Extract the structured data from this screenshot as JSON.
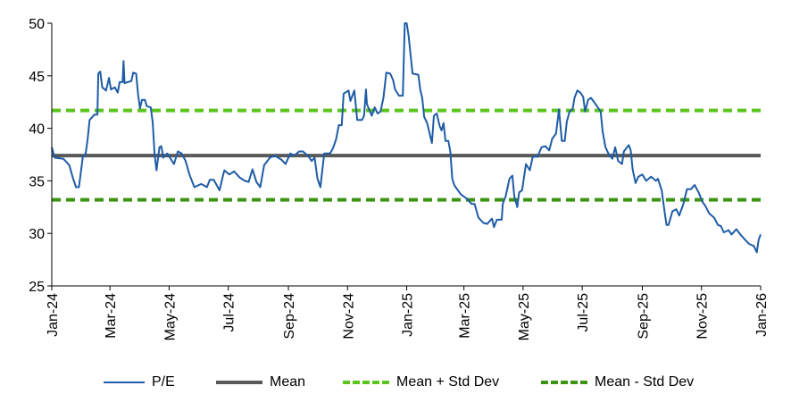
{
  "chart_data": {
    "type": "line",
    "title": "",
    "xlabel": "",
    "ylabel": "",
    "ylim": [
      25,
      50
    ],
    "yticks": [
      25,
      30,
      35,
      40,
      45,
      50
    ],
    "xlim": [
      "2024-01-01",
      "2026-01-01"
    ],
    "xticks": [
      {
        "date": "2024-01-01",
        "label": "Jan-24"
      },
      {
        "date": "2024-03-01",
        "label": "Mar-24"
      },
      {
        "date": "2024-05-01",
        "label": "May-24"
      },
      {
        "date": "2024-07-01",
        "label": "Jul-24"
      },
      {
        "date": "2024-09-01",
        "label": "Sep-24"
      },
      {
        "date": "2024-11-01",
        "label": "Nov-24"
      },
      {
        "date": "2025-01-01",
        "label": "Jan-25"
      },
      {
        "date": "2025-03-01",
        "label": "Mar-25"
      },
      {
        "date": "2025-05-01",
        "label": "May-25"
      },
      {
        "date": "2025-07-01",
        "label": "Jul-25"
      },
      {
        "date": "2025-09-01",
        "label": "Sep-25"
      },
      {
        "date": "2025-11-01",
        "label": "Nov-25"
      },
      {
        "date": "2026-01-01",
        "label": "Jan-26"
      }
    ],
    "grid": false,
    "legend_position": "bottom",
    "series": [
      {
        "name": "P/E",
        "color": "#1F5CA6",
        "style": "solid",
        "points": [
          [
            "2024-01-01",
            38.2
          ],
          [
            "2024-01-04",
            37.2
          ],
          [
            "2024-01-13",
            37.1
          ],
          [
            "2024-01-19",
            36.5
          ],
          [
            "2024-01-23",
            35.2
          ],
          [
            "2024-01-26",
            34.4
          ],
          [
            "2024-01-29",
            34.4
          ],
          [
            "2024-02-02",
            37.3
          ],
          [
            "2024-02-05",
            37.6
          ],
          [
            "2024-02-07",
            39.0
          ],
          [
            "2024-02-09",
            40.8
          ],
          [
            "2024-02-14",
            41.3
          ],
          [
            "2024-02-17",
            41.3
          ],
          [
            "2024-02-18",
            45.2
          ],
          [
            "2024-02-20",
            45.4
          ],
          [
            "2024-02-22",
            43.9
          ],
          [
            "2024-02-26",
            43.6
          ],
          [
            "2024-02-29",
            44.8
          ],
          [
            "2024-03-02",
            43.7
          ],
          [
            "2024-03-06",
            43.9
          ],
          [
            "2024-03-09",
            43.4
          ],
          [
            "2024-03-11",
            44.4
          ],
          [
            "2024-03-14",
            44.4
          ],
          [
            "2024-03-15",
            46.4
          ],
          [
            "2024-03-16",
            44.3
          ],
          [
            "2024-03-23",
            44.5
          ],
          [
            "2024-03-25",
            45.3
          ],
          [
            "2024-03-28",
            45.2
          ],
          [
            "2024-03-30",
            43.2
          ],
          [
            "2024-04-01",
            41.9
          ],
          [
            "2024-04-03",
            42.7
          ],
          [
            "2024-04-06",
            42.7
          ],
          [
            "2024-04-08",
            42.1
          ],
          [
            "2024-04-12",
            42.0
          ],
          [
            "2024-04-14",
            40.6
          ],
          [
            "2024-04-16",
            37.6
          ],
          [
            "2024-04-18",
            36.0
          ],
          [
            "2024-04-21",
            38.2
          ],
          [
            "2024-04-23",
            38.3
          ],
          [
            "2024-04-25",
            37.2
          ],
          [
            "2024-04-29",
            37.6
          ],
          [
            "2024-05-06",
            36.6
          ],
          [
            "2024-05-10",
            37.8
          ],
          [
            "2024-05-14",
            37.6
          ],
          [
            "2024-05-18",
            36.9
          ],
          [
            "2024-05-22",
            35.6
          ],
          [
            "2024-05-27",
            34.4
          ],
          [
            "2024-06-03",
            34.7
          ],
          [
            "2024-06-09",
            34.4
          ],
          [
            "2024-06-12",
            35.1
          ],
          [
            "2024-06-16",
            35.1
          ],
          [
            "2024-06-22",
            34.1
          ],
          [
            "2024-06-25",
            35.3
          ],
          [
            "2024-06-27",
            36.0
          ],
          [
            "2024-07-02",
            35.6
          ],
          [
            "2024-07-07",
            35.9
          ],
          [
            "2024-07-13",
            35.3
          ],
          [
            "2024-07-18",
            35.0
          ],
          [
            "2024-07-22",
            34.9
          ],
          [
            "2024-07-26",
            36.1
          ],
          [
            "2024-07-30",
            34.9
          ],
          [
            "2024-08-03",
            34.4
          ],
          [
            "2024-08-07",
            36.5
          ],
          [
            "2024-08-13",
            37.2
          ],
          [
            "2024-08-18",
            37.4
          ],
          [
            "2024-08-25",
            37.0
          ],
          [
            "2024-08-29",
            36.6
          ],
          [
            "2024-09-03",
            37.6
          ],
          [
            "2024-09-07",
            37.4
          ],
          [
            "2024-09-12",
            37.8
          ],
          [
            "2024-09-16",
            37.8
          ],
          [
            "2024-09-21",
            37.4
          ],
          [
            "2024-09-25",
            36.9
          ],
          [
            "2024-09-28",
            37.2
          ],
          [
            "2024-10-01",
            35.2
          ],
          [
            "2024-10-04",
            34.4
          ],
          [
            "2024-10-06",
            36.0
          ],
          [
            "2024-10-08",
            37.6
          ],
          [
            "2024-10-14",
            37.6
          ],
          [
            "2024-10-17",
            38.1
          ],
          [
            "2024-10-20",
            38.9
          ],
          [
            "2024-10-23",
            40.3
          ],
          [
            "2024-10-26",
            40.3
          ],
          [
            "2024-10-28",
            43.3
          ],
          [
            "2024-11-02",
            43.6
          ],
          [
            "2024-11-04",
            42.6
          ],
          [
            "2024-11-08",
            43.6
          ],
          [
            "2024-11-11",
            40.8
          ],
          [
            "2024-11-16",
            40.8
          ],
          [
            "2024-11-18",
            41.2
          ],
          [
            "2024-11-20",
            43.7
          ],
          [
            "2024-11-21",
            42.3
          ],
          [
            "2024-11-26",
            41.2
          ],
          [
            "2024-11-29",
            42.0
          ],
          [
            "2024-12-02",
            41.4
          ],
          [
            "2024-12-05",
            41.6
          ],
          [
            "2024-12-08",
            42.9
          ],
          [
            "2024-12-11",
            45.3
          ],
          [
            "2024-12-15",
            45.2
          ],
          [
            "2024-12-18",
            44.6
          ],
          [
            "2024-12-20",
            43.7
          ],
          [
            "2024-12-24",
            43.1
          ],
          [
            "2024-12-28",
            43.1
          ],
          [
            "2024-12-30",
            50.0
          ],
          [
            "2025-01-01",
            50.0
          ],
          [
            "2025-01-03",
            48.8
          ],
          [
            "2025-01-05",
            47.0
          ],
          [
            "2025-01-07",
            45.2
          ],
          [
            "2025-01-13",
            45.1
          ],
          [
            "2025-01-15",
            43.7
          ],
          [
            "2025-01-17",
            42.9
          ],
          [
            "2025-01-19",
            41.1
          ],
          [
            "2025-01-22",
            40.5
          ],
          [
            "2025-01-27",
            38.6
          ],
          [
            "2025-01-29",
            41.2
          ],
          [
            "2025-02-01",
            41.4
          ],
          [
            "2025-02-04",
            40.2
          ],
          [
            "2025-02-06",
            39.8
          ],
          [
            "2025-02-08",
            40.5
          ],
          [
            "2025-02-10",
            38.8
          ],
          [
            "2025-02-13",
            38.8
          ],
          [
            "2025-02-15",
            37.8
          ],
          [
            "2025-02-17",
            35.2
          ],
          [
            "2025-02-19",
            34.6
          ],
          [
            "2025-02-22",
            34.2
          ],
          [
            "2025-02-26",
            33.7
          ],
          [
            "2025-03-04",
            33.3
          ],
          [
            "2025-03-09",
            32.8
          ],
          [
            "2025-03-12",
            32.8
          ],
          [
            "2025-03-16",
            31.5
          ],
          [
            "2025-03-21",
            31.0
          ],
          [
            "2025-03-25",
            30.9
          ],
          [
            "2025-03-30",
            31.4
          ],
          [
            "2025-04-01",
            30.6
          ],
          [
            "2025-04-04",
            31.3
          ],
          [
            "2025-04-09",
            31.3
          ],
          [
            "2025-04-10",
            32.8
          ],
          [
            "2025-04-13",
            33.5
          ],
          [
            "2025-04-17",
            35.2
          ],
          [
            "2025-04-20",
            35.5
          ],
          [
            "2025-04-22",
            33.5
          ],
          [
            "2025-04-25",
            32.5
          ],
          [
            "2025-04-27",
            33.9
          ],
          [
            "2025-04-30",
            34.1
          ],
          [
            "2025-05-04",
            36.6
          ],
          [
            "2025-05-08",
            36.0
          ],
          [
            "2025-05-11",
            37.3
          ],
          [
            "2025-05-16",
            37.3
          ],
          [
            "2025-05-20",
            38.2
          ],
          [
            "2025-05-24",
            38.3
          ],
          [
            "2025-05-28",
            37.9
          ],
          [
            "2025-05-31",
            39.0
          ],
          [
            "2025-06-04",
            39.5
          ],
          [
            "2025-06-07",
            41.8
          ],
          [
            "2025-06-10",
            38.8
          ],
          [
            "2025-06-13",
            38.8
          ],
          [
            "2025-06-15",
            40.6
          ],
          [
            "2025-06-18",
            41.6
          ],
          [
            "2025-06-21",
            41.8
          ],
          [
            "2025-06-23",
            42.9
          ],
          [
            "2025-06-26",
            43.6
          ],
          [
            "2025-06-29",
            43.4
          ],
          [
            "2025-07-02",
            43.0
          ],
          [
            "2025-07-04",
            41.6
          ],
          [
            "2025-07-07",
            42.7
          ],
          [
            "2025-07-10",
            42.9
          ],
          [
            "2025-07-14",
            42.4
          ],
          [
            "2025-07-20",
            41.6
          ],
          [
            "2025-07-22",
            39.7
          ],
          [
            "2025-07-25",
            38.2
          ],
          [
            "2025-07-28",
            37.6
          ],
          [
            "2025-08-01",
            37.1
          ],
          [
            "2025-08-04",
            38.2
          ],
          [
            "2025-08-07",
            36.9
          ],
          [
            "2025-08-11",
            36.6
          ],
          [
            "2025-08-13",
            37.8
          ],
          [
            "2025-08-18",
            38.4
          ],
          [
            "2025-08-20",
            37.9
          ],
          [
            "2025-08-22",
            36.1
          ],
          [
            "2025-08-25",
            34.8
          ],
          [
            "2025-08-28",
            35.4
          ],
          [
            "2025-09-01",
            35.6
          ],
          [
            "2025-09-05",
            35.0
          ],
          [
            "2025-09-10",
            35.4
          ],
          [
            "2025-09-15",
            35.0
          ],
          [
            "2025-09-17",
            35.2
          ],
          [
            "2025-09-21",
            34.1
          ],
          [
            "2025-09-24",
            32.0
          ],
          [
            "2025-09-26",
            30.8
          ],
          [
            "2025-09-28",
            30.8
          ],
          [
            "2025-10-02",
            32.1
          ],
          [
            "2025-10-06",
            32.3
          ],
          [
            "2025-10-09",
            31.7
          ],
          [
            "2025-10-13",
            32.7
          ],
          [
            "2025-10-17",
            34.2
          ],
          [
            "2025-10-21",
            34.2
          ],
          [
            "2025-10-25",
            34.6
          ],
          [
            "2025-10-29",
            33.9
          ],
          [
            "2025-11-02",
            33.0
          ],
          [
            "2025-11-05",
            32.6
          ],
          [
            "2025-11-09",
            31.9
          ],
          [
            "2025-11-14",
            31.5
          ],
          [
            "2025-11-18",
            30.8
          ],
          [
            "2025-11-21",
            30.7
          ],
          [
            "2025-11-24",
            30.1
          ],
          [
            "2025-11-29",
            30.3
          ],
          [
            "2025-12-02",
            29.9
          ],
          [
            "2025-12-07",
            30.4
          ],
          [
            "2025-12-11",
            29.9
          ],
          [
            "2025-12-16",
            29.4
          ],
          [
            "2025-12-20",
            29.0
          ],
          [
            "2025-12-25",
            28.8
          ],
          [
            "2025-12-28",
            28.2
          ],
          [
            "2025-12-30",
            29.4
          ],
          [
            "2026-01-01",
            29.9
          ]
        ]
      },
      {
        "name": "Mean",
        "color": "#595959",
        "style": "solid",
        "value": 37.4
      },
      {
        "name": "Mean + Std Dev",
        "color": "#5BC51E",
        "style": "dashed",
        "value": 41.7
      },
      {
        "name": "Mean - Std Dev",
        "color": "#3C9412",
        "style": "dashed",
        "value": 33.2
      }
    ]
  }
}
